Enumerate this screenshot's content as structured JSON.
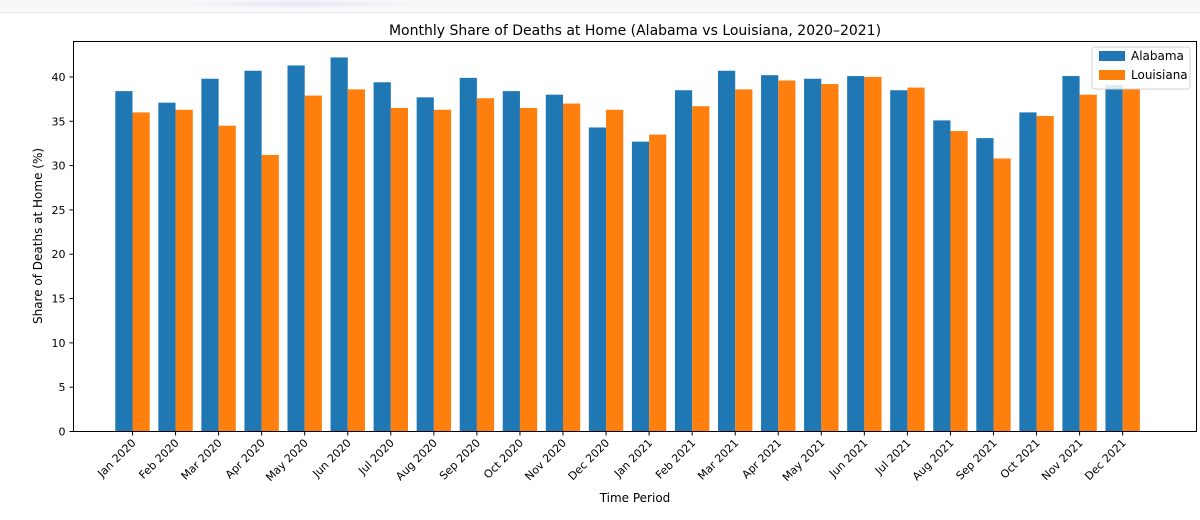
{
  "chart_data": {
    "type": "bar",
    "title": "Monthly Share of Deaths at Home (Alabama vs Louisiana, 2020–2021)",
    "xlabel": "Time Period",
    "ylabel": "Share of Deaths at Home (%)",
    "ylim": [
      0,
      44
    ],
    "yticks": [
      "0",
      "5",
      "10",
      "15",
      "20",
      "25",
      "30",
      "35",
      "40"
    ],
    "grid": false,
    "legend_position": "top-right",
    "categories": [
      "Jan 2020",
      "Feb 2020",
      "Mar 2020",
      "Apr 2020",
      "May 2020",
      "Jun 2020",
      "Jul 2020",
      "Aug 2020",
      "Sep 2020",
      "Oct 2020",
      "Nov 2020",
      "Dec 2020",
      "Jan 2021",
      "Feb 2021",
      "Mar 2021",
      "Apr 2021",
      "May 2021",
      "Jun 2021",
      "Jul 2021",
      "Aug 2021",
      "Sep 2021",
      "Oct 2021",
      "Nov 2021",
      "Dec 2021"
    ],
    "series": [
      {
        "name": "Alabama",
        "color": "#1f77b4",
        "values": [
          38.4,
          37.1,
          39.8,
          40.7,
          41.3,
          42.2,
          39.4,
          37.7,
          39.9,
          38.4,
          38.0,
          34.3,
          32.7,
          38.5,
          40.7,
          40.2,
          39.8,
          40.1,
          38.5,
          35.1,
          33.1,
          36.0,
          40.1,
          39.1
        ]
      },
      {
        "name": "Louisiana",
        "color": "#ff7f0e",
        "values": [
          36.0,
          36.3,
          34.5,
          31.2,
          37.9,
          38.6,
          36.5,
          36.3,
          37.6,
          36.5,
          37.0,
          36.3,
          33.5,
          36.7,
          38.6,
          39.6,
          39.2,
          40.0,
          38.8,
          33.9,
          30.8,
          35.6,
          38.0,
          38.6
        ]
      }
    ]
  }
}
